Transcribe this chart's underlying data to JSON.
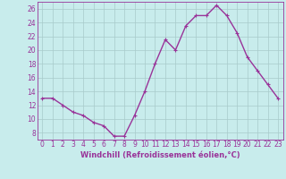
{
  "x": [
    0,
    1,
    2,
    3,
    4,
    5,
    6,
    7,
    8,
    9,
    10,
    11,
    12,
    13,
    14,
    15,
    16,
    17,
    18,
    19,
    20,
    21,
    22,
    23
  ],
  "y": [
    13,
    13,
    12,
    11,
    10.5,
    9.5,
    9,
    7.5,
    7.5,
    10.5,
    14,
    18,
    21.5,
    20,
    23.5,
    25,
    25,
    26.5,
    25,
    22.5,
    19,
    17,
    15,
    13
  ],
  "line_color": "#993399",
  "marker": "+",
  "marker_size": 3,
  "bg_color": "#c8ecec",
  "grid_color": "#a8caca",
  "xlabel": "Windchill (Refroidissement éolien,°C)",
  "xlim": [
    -0.5,
    23.5
  ],
  "ylim": [
    7,
    27
  ],
  "yticks": [
    8,
    10,
    12,
    14,
    16,
    18,
    20,
    22,
    24,
    26
  ],
  "xticks": [
    0,
    1,
    2,
    3,
    4,
    5,
    6,
    7,
    8,
    9,
    10,
    11,
    12,
    13,
    14,
    15,
    16,
    17,
    18,
    19,
    20,
    21,
    22,
    23
  ],
  "xlabel_fontsize": 6,
  "tick_fontsize": 5.5,
  "line_width": 1.0
}
